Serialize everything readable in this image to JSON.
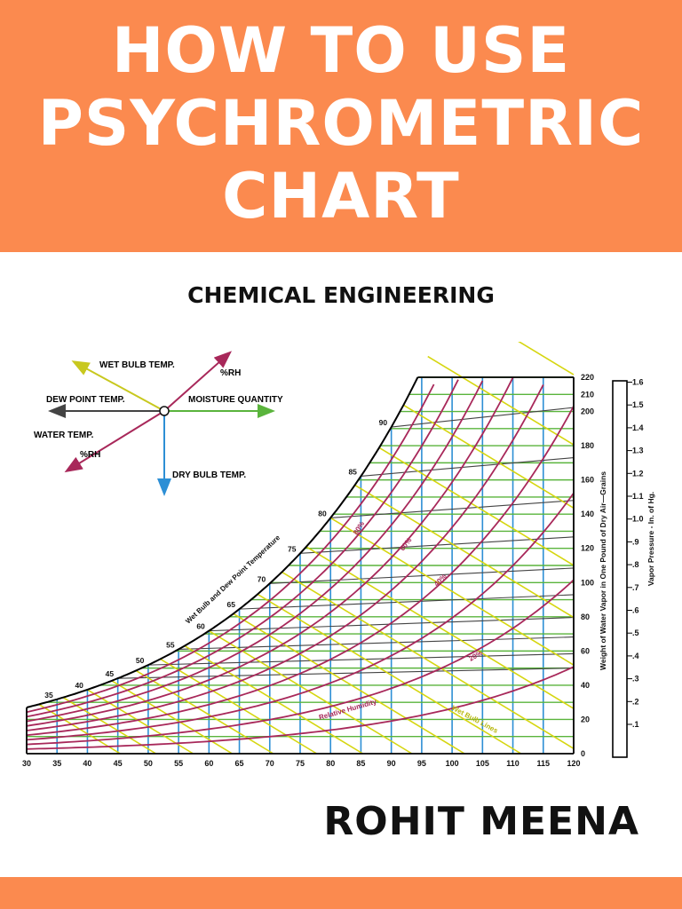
{
  "cover": {
    "title_lines": [
      "HOW TO USE",
      "PSYCHROMETRIC",
      "CHART"
    ],
    "subtitle": "CHEMICAL ENGINEERING",
    "author": "ROHIT MEENA",
    "colors": {
      "banner": "#fb8a4f",
      "title_text": "#ffffff",
      "body_text": "#111111"
    }
  },
  "legend_diagram": {
    "labels": {
      "wet_bulb": "WET BULB TEMP.",
      "rh_top": "%RH",
      "dew_point": "DEW POINT TEMP.",
      "moisture": "MOISTURE QUANTITY",
      "water_temp": "WATER TEMP.",
      "rh_bottom": "%RH",
      "dry_bulb": "DRY BULB TEMP."
    },
    "colors": {
      "wet_bulb": "#c8c81e",
      "rh": "#a8285a",
      "dew_point": "#444444",
      "moisture": "#5ab43c",
      "dry_bulb": "#2d8fd5"
    }
  },
  "chart_data": {
    "type": "line",
    "title": "",
    "xlabel": "",
    "x_ticks": [
      30,
      35,
      40,
      45,
      50,
      55,
      60,
      65,
      70,
      75,
      80,
      85,
      90,
      95,
      100,
      105,
      110,
      115,
      120
    ],
    "xlim": [
      30,
      120
    ],
    "ylabel": "Weight of Water Vapor in One Pound of Dry Air—Grains",
    "y_ticks": [
      0,
      20,
      40,
      60,
      80,
      100,
      120,
      140,
      160,
      180,
      200,
      210,
      220
    ],
    "ylim": [
      0,
      220
    ],
    "y2label": "Vapor Pressure - In. of Hg.",
    "y2_ticks": [
      ".1",
      ".2",
      ".3",
      ".4",
      ".5",
      ".6",
      ".7",
      ".8",
      ".9",
      "1.0",
      "1.1",
      "1.2",
      "1.3",
      "1.4",
      "1.5",
      "1.6"
    ],
    "saturation_curve": {
      "label": "Wet Bulb and Dew Point Temperature",
      "temperature_labels": [
        "35",
        "40",
        "45",
        "50",
        "55",
        "60",
        "65",
        "70",
        "75",
        "80",
        "85",
        "90"
      ]
    },
    "relative_humidity": {
      "label": "Relative Humidity",
      "curve_labels": [
        "80%",
        "60%",
        "40%",
        "20%"
      ]
    },
    "wet_bulb_lines_label": "Wet Bulb Lines",
    "colors": {
      "dry_bulb": "#2d8fd5",
      "moisture": "#5ab43c",
      "wet_bulb": "#d6d610",
      "rh": "#a8285a",
      "dew_point": "#444444",
      "saturation": "#000000"
    }
  }
}
